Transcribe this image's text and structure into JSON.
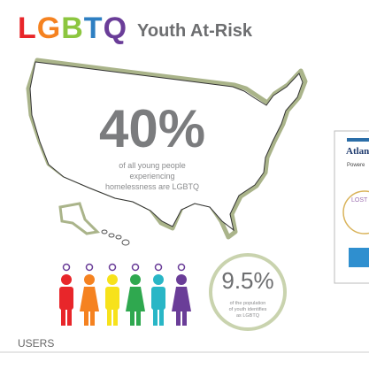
{
  "header": {
    "logo": "LGBTQ",
    "title": "Youth At-Risk"
  },
  "map_stat": {
    "value": "40%",
    "caption": [
      "of all young people",
      "experiencing",
      "homelessness are LGBTQ"
    ]
  },
  "circle_stat": {
    "value": "9.5%",
    "caption": [
      "of the population",
      "of youth identifies",
      "as LGBTQ"
    ]
  },
  "side_panel": {
    "brand": "Atlan",
    "powered": "Powere",
    "logo_text": "LOST"
  },
  "footer": {
    "section": "USERS"
  }
}
